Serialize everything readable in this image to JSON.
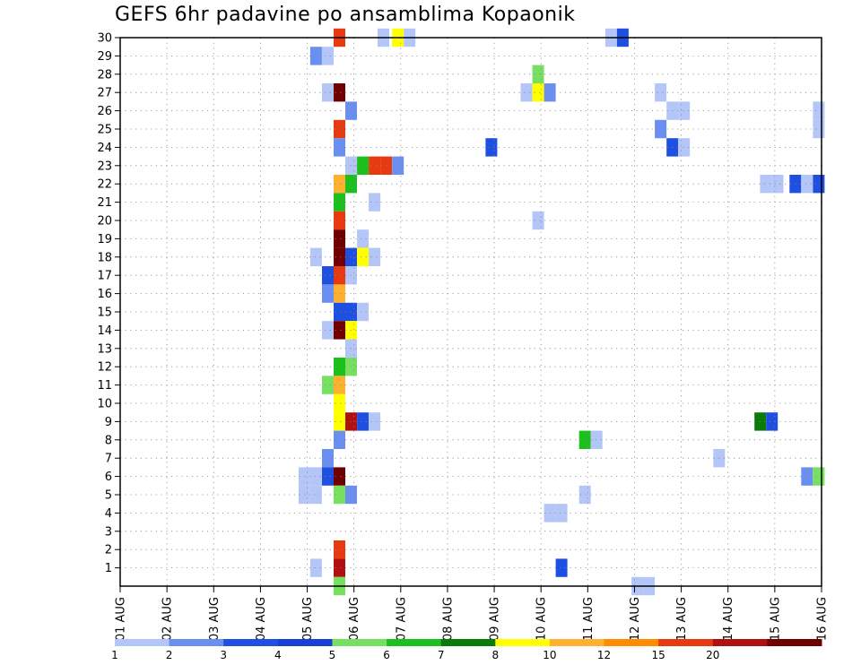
{
  "chart_data": {
    "type": "heatmap",
    "title": "GEFS 6hr padavine po ansamblima Kopaonik",
    "x_tick_labels": [
      "01 AUG",
      "02 AUG",
      "03 AUG",
      "04 AUG",
      "05 AUG",
      "06 AUG",
      "07 AUG",
      "08 AUG",
      "09 AUG",
      "10 AUG",
      "11 AUG",
      "12 AUG",
      "13 AUG",
      "14 AUG",
      "15 AUG",
      "16 AUG"
    ],
    "y_tick_labels": [
      "1",
      "2",
      "3",
      "4",
      "5",
      "6",
      "7",
      "8",
      "9",
      "10",
      "11",
      "12",
      "13",
      "14",
      "15",
      "16",
      "17",
      "18",
      "19",
      "20",
      "21",
      "22",
      "23",
      "24",
      "25",
      "26",
      "27",
      "28",
      "29",
      "30"
    ],
    "x_range_days": [
      0,
      15
    ],
    "y_range": [
      0,
      30
    ],
    "grid": true,
    "legend": {
      "placement": "bottom",
      "labels": [
        "1",
        "2",
        "3",
        "4",
        "5",
        "6",
        "7",
        "8",
        "10",
        "12",
        "15",
        "20"
      ],
      "colors": [
        "#b3c6f7",
        "#6b8ff0",
        "#1f4fe0",
        "#1a3fd6",
        "#78e060",
        "#1cc01c",
        "#0a7a0a",
        "#ffff00",
        "#ffb030",
        "#ff8c00",
        "#e83a10",
        "#b01010",
        "#700000"
      ]
    },
    "cells": [
      {
        "day": 4.69,
        "member": 30,
        "color": "#e83a10"
      },
      {
        "day": 5.63,
        "member": 30,
        "color": "#b3c6f7"
      },
      {
        "day": 5.94,
        "member": 30,
        "color": "#ffff00"
      },
      {
        "day": 6.19,
        "member": 30,
        "color": "#b3c6f7"
      },
      {
        "day": 10.5,
        "member": 30,
        "color": "#b3c6f7"
      },
      {
        "day": 10.75,
        "member": 30,
        "color": "#1f4fe0"
      },
      {
        "day": 4.19,
        "member": 29,
        "color": "#6b8ff0"
      },
      {
        "day": 4.44,
        "member": 29,
        "color": "#b3c6f7"
      },
      {
        "day": 8.94,
        "member": 28,
        "color": "#78e060"
      },
      {
        "day": 4.44,
        "member": 27,
        "color": "#b3c6f7"
      },
      {
        "day": 4.69,
        "member": 27,
        "color": "#700000"
      },
      {
        "day": 8.69,
        "member": 27,
        "color": "#b3c6f7"
      },
      {
        "day": 8.94,
        "member": 27,
        "color": "#ffff00"
      },
      {
        "day": 9.19,
        "member": 27,
        "color": "#6b8ff0"
      },
      {
        "day": 11.56,
        "member": 27,
        "color": "#b3c6f7"
      },
      {
        "day": 4.94,
        "member": 26,
        "color": "#6b8ff0"
      },
      {
        "day": 11.81,
        "member": 26,
        "color": "#b3c6f7"
      },
      {
        "day": 12.06,
        "member": 26,
        "color": "#b3c6f7"
      },
      {
        "day": 14.94,
        "member": 26,
        "color": "#b3c6f7"
      },
      {
        "day": 4.69,
        "member": 25,
        "color": "#e83a10"
      },
      {
        "day": 11.56,
        "member": 25,
        "color": "#6b8ff0"
      },
      {
        "day": 14.94,
        "member": 25,
        "color": "#b3c6f7"
      },
      {
        "day": 4.69,
        "member": 24,
        "color": "#6b8ff0"
      },
      {
        "day": 7.94,
        "member": 24,
        "color": "#1f4fe0"
      },
      {
        "day": 11.81,
        "member": 24,
        "color": "#1f4fe0"
      },
      {
        "day": 12.06,
        "member": 24,
        "color": "#b3c6f7"
      },
      {
        "day": 4.94,
        "member": 23,
        "color": "#b3c6f7"
      },
      {
        "day": 5.19,
        "member": 23,
        "color": "#1cc01c"
      },
      {
        "day": 5.44,
        "member": 23,
        "color": "#e83a10"
      },
      {
        "day": 5.69,
        "member": 23,
        "color": "#e83a10"
      },
      {
        "day": 5.94,
        "member": 23,
        "color": "#6b8ff0"
      },
      {
        "day": 4.69,
        "member": 22,
        "color": "#ffb030"
      },
      {
        "day": 4.94,
        "member": 22,
        "color": "#1cc01c"
      },
      {
        "day": 13.81,
        "member": 22,
        "color": "#b3c6f7"
      },
      {
        "day": 14.06,
        "member": 22,
        "color": "#b3c6f7"
      },
      {
        "day": 14.44,
        "member": 22,
        "color": "#1f4fe0"
      },
      {
        "day": 14.69,
        "member": 22,
        "color": "#b3c6f7"
      },
      {
        "day": 14.94,
        "member": 22,
        "color": "#1f4fe0"
      },
      {
        "day": 4.69,
        "member": 21,
        "color": "#1cc01c"
      },
      {
        "day": 5.44,
        "member": 21,
        "color": "#b3c6f7"
      },
      {
        "day": 4.69,
        "member": 20,
        "color": "#e83a10"
      },
      {
        "day": 8.94,
        "member": 20,
        "color": "#b3c6f7"
      },
      {
        "day": 4.69,
        "member": 19,
        "color": "#700000"
      },
      {
        "day": 5.19,
        "member": 19,
        "color": "#b3c6f7"
      },
      {
        "day": 4.19,
        "member": 18,
        "color": "#b3c6f7"
      },
      {
        "day": 4.69,
        "member": 18,
        "color": "#700000"
      },
      {
        "day": 4.94,
        "member": 18,
        "color": "#1f4fe0"
      },
      {
        "day": 5.19,
        "member": 18,
        "color": "#ffff00"
      },
      {
        "day": 5.44,
        "member": 18,
        "color": "#b3c6f7"
      },
      {
        "day": 4.44,
        "member": 17,
        "color": "#1f4fe0"
      },
      {
        "day": 4.69,
        "member": 17,
        "color": "#e83a10"
      },
      {
        "day": 4.94,
        "member": 17,
        "color": "#b3c6f7"
      },
      {
        "day": 4.44,
        "member": 16,
        "color": "#6b8ff0"
      },
      {
        "day": 4.69,
        "member": 16,
        "color": "#ffb030"
      },
      {
        "day": 4.69,
        "member": 15,
        "color": "#1f4fe0"
      },
      {
        "day": 4.94,
        "member": 15,
        "color": "#1f4fe0"
      },
      {
        "day": 5.19,
        "member": 15,
        "color": "#b3c6f7"
      },
      {
        "day": 4.44,
        "member": 14,
        "color": "#b3c6f7"
      },
      {
        "day": 4.69,
        "member": 14,
        "color": "#700000"
      },
      {
        "day": 4.94,
        "member": 14,
        "color": "#ffff00"
      },
      {
        "day": 4.94,
        "member": 13,
        "color": "#b3c6f7"
      },
      {
        "day": 4.69,
        "member": 12,
        "color": "#1cc01c"
      },
      {
        "day": 4.94,
        "member": 12,
        "color": "#78e060"
      },
      {
        "day": 4.44,
        "member": 11,
        "color": "#78e060"
      },
      {
        "day": 4.69,
        "member": 11,
        "color": "#ffb030"
      },
      {
        "day": 4.69,
        "member": 10,
        "color": "#ffff00"
      },
      {
        "day": 4.69,
        "member": 9,
        "color": "#ffff00"
      },
      {
        "day": 4.94,
        "member": 9,
        "color": "#b01010"
      },
      {
        "day": 5.19,
        "member": 9,
        "color": "#1f4fe0"
      },
      {
        "day": 5.44,
        "member": 9,
        "color": "#b3c6f7"
      },
      {
        "day": 13.69,
        "member": 9,
        "color": "#0a7a0a"
      },
      {
        "day": 13.94,
        "member": 9,
        "color": "#1f4fe0"
      },
      {
        "day": 4.69,
        "member": 8,
        "color": "#6b8ff0"
      },
      {
        "day": 9.94,
        "member": 8,
        "color": "#1cc01c"
      },
      {
        "day": 10.19,
        "member": 8,
        "color": "#b3c6f7"
      },
      {
        "day": 4.44,
        "member": 7,
        "color": "#6b8ff0"
      },
      {
        "day": 12.81,
        "member": 7,
        "color": "#b3c6f7"
      },
      {
        "day": 3.94,
        "member": 6,
        "color": "#b3c6f7"
      },
      {
        "day": 4.19,
        "member": 6,
        "color": "#b3c6f7"
      },
      {
        "day": 4.44,
        "member": 6,
        "color": "#1f4fe0"
      },
      {
        "day": 4.69,
        "member": 6,
        "color": "#700000"
      },
      {
        "day": 14.69,
        "member": 6,
        "color": "#6b8ff0"
      },
      {
        "day": 14.94,
        "member": 6,
        "color": "#78e060"
      },
      {
        "day": 3.94,
        "member": 5,
        "color": "#b3c6f7"
      },
      {
        "day": 4.19,
        "member": 5,
        "color": "#b3c6f7"
      },
      {
        "day": 4.69,
        "member": 5,
        "color": "#78e060"
      },
      {
        "day": 4.94,
        "member": 5,
        "color": "#6b8ff0"
      },
      {
        "day": 9.94,
        "member": 5,
        "color": "#b3c6f7"
      },
      {
        "day": 9.19,
        "member": 4,
        "color": "#b3c6f7"
      },
      {
        "day": 9.44,
        "member": 4,
        "color": "#b3c6f7"
      },
      {
        "day": 4.69,
        "member": 2,
        "color": "#e83a10"
      },
      {
        "day": 4.19,
        "member": 1,
        "color": "#b3c6f7"
      },
      {
        "day": 4.69,
        "member": 1,
        "color": "#b01010"
      },
      {
        "day": 9.44,
        "member": 1,
        "color": "#1f4fe0"
      },
      {
        "day": 4.69,
        "member": 0,
        "color": "#78e060"
      },
      {
        "day": 11.06,
        "member": 0,
        "color": "#b3c6f7"
      },
      {
        "day": 11.31,
        "member": 0,
        "color": "#b3c6f7"
      }
    ]
  }
}
